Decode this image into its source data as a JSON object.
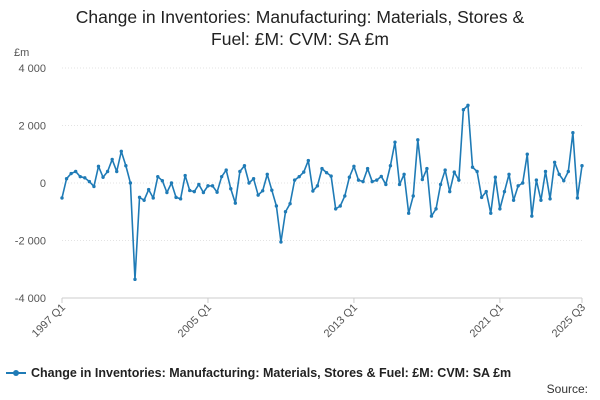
{
  "chart_data": {
    "type": "line",
    "title_lines": [
      "Change in Inventories: Manufacturing: Materials, Stores &",
      "Fuel: £M: CVM: SA £m"
    ],
    "unit_label": "£m",
    "xlabel": "",
    "ylabel": "",
    "ylim": [
      -4000,
      4000
    ],
    "y_ticks": [
      -4000,
      -2000,
      0,
      2000,
      4000
    ],
    "y_tick_labels": [
      "-4 000",
      "-2 000",
      "0",
      "2 000",
      "4 000"
    ],
    "x_tick_labels": [
      "1997 Q1",
      "2005 Q1",
      "2013 Q1",
      "2021 Q1",
      "2025 Q3"
    ],
    "x_tick_indices": [
      0,
      32,
      64,
      96,
      114
    ],
    "grid": true,
    "legend_position": "bottom",
    "source_label": "Source:",
    "colors": {
      "series": "#1f7bb6"
    },
    "series": [
      {
        "name": "Change in Inventories: Manufacturing: Materials, Stores & Fuel: £M: CVM: SA £m",
        "values": [
          -520,
          150,
          330,
          400,
          220,
          180,
          50,
          -120,
          580,
          200,
          400,
          820,
          400,
          1100,
          600,
          0,
          -3350,
          -500,
          -600,
          -230,
          -520,
          220,
          80,
          -330,
          0,
          -500,
          -550,
          260,
          -260,
          -300,
          -50,
          -330,
          -100,
          -100,
          -320,
          220,
          450,
          -200,
          -700,
          400,
          600,
          0,
          150,
          -420,
          -270,
          300,
          -250,
          -800,
          -2050,
          -1000,
          -720,
          100,
          220,
          380,
          780,
          -280,
          -100,
          500,
          360,
          240,
          -900,
          -800,
          -450,
          200,
          580,
          100,
          50,
          500,
          50,
          100,
          230,
          -50,
          600,
          1420,
          -50,
          300,
          -1050,
          -450,
          1500,
          120,
          500,
          -1150,
          -900,
          -50,
          450,
          -300,
          380,
          100,
          2550,
          2700,
          550,
          400,
          -500,
          -300,
          -1050,
          200,
          -900,
          -300,
          300,
          -600,
          -100,
          0,
          1000,
          -1150,
          100,
          -600,
          400,
          -550,
          720,
          300,
          80,
          400,
          1750,
          -520,
          600
        ]
      }
    ]
  }
}
